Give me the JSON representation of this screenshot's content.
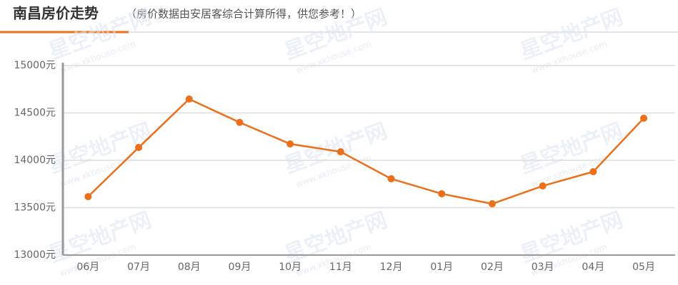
{
  "chart_data": {
    "type": "line",
    "title": "南昌房价走势",
    "subtitle": "（房价数据由安居客综合计算所得，供您参考！）",
    "watermark": "星空地产网",
    "watermark_url": "www.xkhouse.com",
    "categories": [
      "06月",
      "07月",
      "08月",
      "09月",
      "10月",
      "11月",
      "12月",
      "01月",
      "02月",
      "03月",
      "04月",
      "05月"
    ],
    "values": [
      13617,
      14135,
      14647,
      14400,
      14173,
      14090,
      13805,
      13647,
      13541,
      13730,
      13880,
      14444
    ],
    "color": "#ec6f1a",
    "ylim": [
      13000,
      15000
    ],
    "yticks": [
      {
        "value": 13000,
        "label": "13000元"
      },
      {
        "value": 13500,
        "label": "13500元"
      },
      {
        "value": 14000,
        "label": "14000元"
      },
      {
        "value": 14500,
        "label": "14500元"
      },
      {
        "value": 15000,
        "label": "15000元"
      }
    ],
    "grid": true
  }
}
